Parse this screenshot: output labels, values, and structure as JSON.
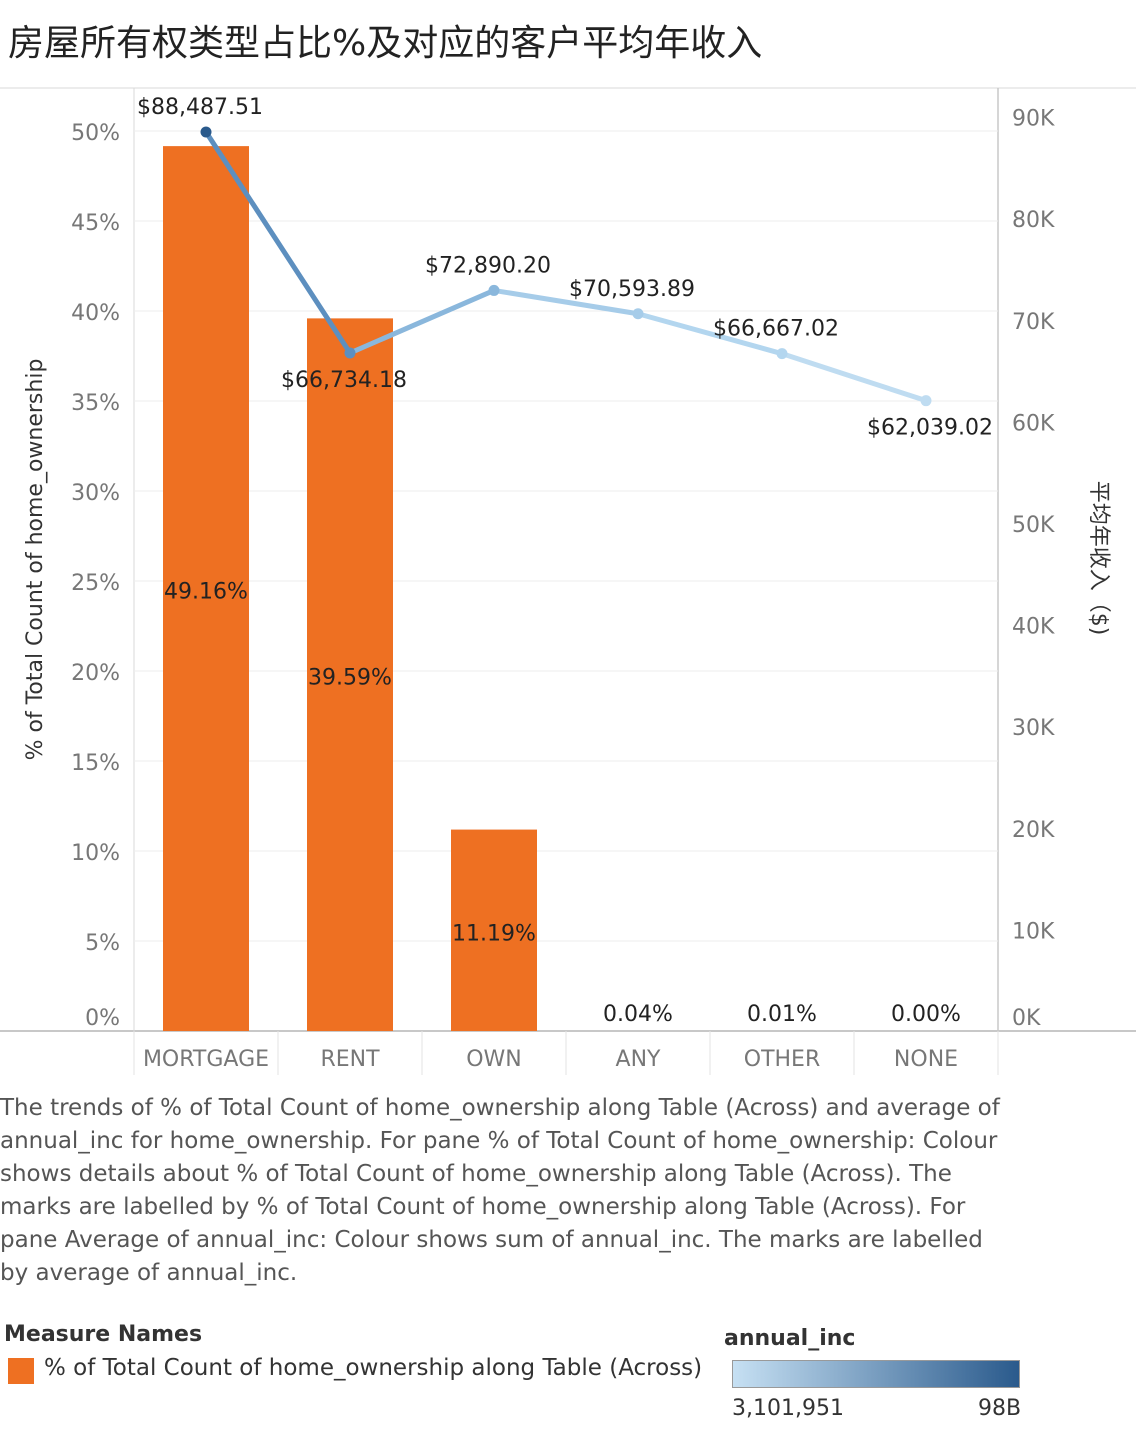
{
  "title": "房屋所有权类型占比%及对应的客户平均年收入",
  "chart_data": {
    "type": "bar+line",
    "categories": [
      "MORTGAGE",
      "RENT",
      "OWN",
      "ANY",
      "OTHER",
      "NONE"
    ],
    "bar_series": {
      "name": "% of Total Count of home_ownership along Table (Across)",
      "values": [
        49.16,
        39.59,
        11.19,
        0.04,
        0.01,
        0.0
      ],
      "labels": [
        "49.16%",
        "39.59%",
        "11.19%",
        "0.04%",
        "0.01%",
        "0.00%"
      ],
      "color": "#ee7022"
    },
    "line_series": {
      "values": [
        88487.51,
        66734.18,
        72890.2,
        70593.89,
        66667.02,
        62039.02
      ],
      "labels": [
        "$88,487.51",
        "$66,734.18",
        "$72,890.20",
        "$70,593.89",
        "$66,667.02",
        "$62,039.02"
      ],
      "colors": [
        "#2a5a8c",
        "#5d8fbf",
        "#8ab7dc",
        "#a6cce9",
        "#b3d6ef",
        "#bfdcf1"
      ]
    },
    "y_left": {
      "label": "% of Total Count of home_ownership",
      "range": [
        0,
        51
      ],
      "ticks": [
        0,
        5,
        10,
        15,
        20,
        25,
        30,
        35,
        40,
        45,
        50
      ],
      "tick_labels": [
        "0%",
        "5%",
        "10%",
        "15%",
        "20%",
        "25%",
        "30%",
        "35%",
        "40%",
        "45%",
        "50%"
      ]
    },
    "y_right": {
      "label": "平均年收入（$)",
      "range": [
        0,
        93000
      ],
      "ticks": [
        0,
        10000,
        20000,
        30000,
        40000,
        50000,
        60000,
        70000,
        80000,
        90000
      ],
      "tick_labels": [
        "0K",
        "10K",
        "20K",
        "30K",
        "40K",
        "50K",
        "60K",
        "70K",
        "80K",
        "90K"
      ]
    },
    "grid": true
  },
  "caption": "The trends of % of Total Count of home_ownership along Table (Across) and average of annual_inc for home_ownership.  For pane % of Total Count of home_ownership:  Colour shows details about % of Total Count of home_ownership along Table (Across).  The marks are labelled by % of Total Count of home_ownership along Table (Across).  For pane Average of annual_inc:  Colour shows sum of annual_inc.  The marks are labelled by average of annual_inc.",
  "legend": {
    "measure_title": "Measure Names",
    "measure_label": "% of Total Count of home_ownership along Table (Across)",
    "measure_color": "#ee7022",
    "color_title": "annual_inc",
    "color_min_label": "3,101,951",
    "color_max_label": "98B",
    "gradient_start": "#c6e0f3",
    "gradient_end": "#2a5a8c"
  }
}
